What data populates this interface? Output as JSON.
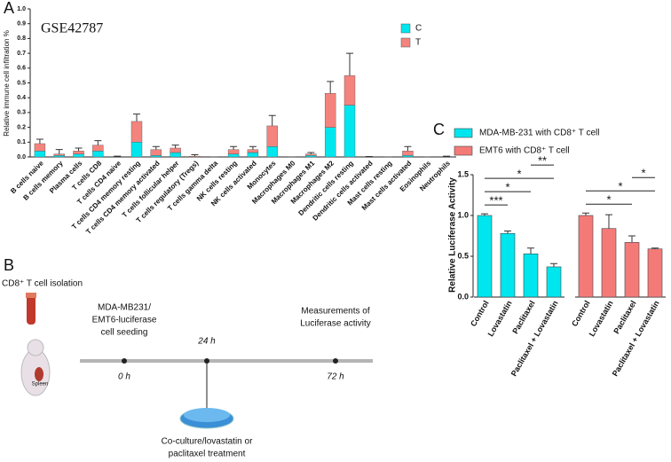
{
  "panel_labels": [
    "A",
    "B",
    "C"
  ],
  "chart_data": [
    {
      "type": "stacked_bar",
      "title": "GSE42787",
      "y_label": "Relative immune cell infiltration %",
      "categories": [
        "B cells naive",
        "B cells memory",
        "Plasma cells",
        "T cells CD8",
        "T cells CD4 naive",
        "T cells CD4 memory resting",
        "T cells CD4 memory activated",
        "T cells follicular helper",
        "T cells regulatory (Tregs)",
        "T cells gamma delta",
        "NK cells resting",
        "NK cells activated",
        "Monocytes",
        "Macrophages M0",
        "Macrophages M1",
        "Macrophages M2",
        "Dendritic cells resting",
        "Dendritic cells activated",
        "Mast cells resting",
        "Mast cells activated",
        "Eosinophils",
        "Neutrophils"
      ],
      "series": [
        {
          "name": "C",
          "color": "#00e6ee",
          "values": [
            0.04,
            0.01,
            0.02,
            0.04,
            0,
            0.1,
            0.01,
            0.03,
            0,
            0,
            0.02,
            0.03,
            0.07,
            0,
            0.01,
            0.2,
            0.35,
            0,
            0,
            0.01,
            0,
            0
          ]
        },
        {
          "name": "T",
          "color": "#f4837d",
          "values": [
            0.05,
            0.01,
            0.02,
            0.04,
            0,
            0.14,
            0.04,
            0.03,
            0.005,
            0,
            0.03,
            0.02,
            0.14,
            0,
            0.01,
            0.23,
            0.2,
            0,
            0,
            0.03,
            0,
            0
          ],
          "errors": [
            0.03,
            0.03,
            0.02,
            0.03,
            0.005,
            0.05,
            0.02,
            0.02,
            0.01,
            0,
            0.02,
            0.02,
            0.07,
            0,
            0.01,
            0.08,
            0.15,
            0.003,
            0,
            0.03,
            0,
            0.005
          ]
        }
      ],
      "ylim": [
        0,
        1.0
      ],
      "yticks": [
        {
          "value": 0,
          "label": "0.0"
        },
        0.1,
        0.2,
        0.3,
        0.4,
        0.5,
        0.6,
        0.7,
        0.8,
        0.9,
        {
          "value": 1.0,
          "label": "1.0"
        }
      ],
      "legend": "top-right"
    },
    {
      "type": "grouped_bar",
      "y_label": "Relative Luciferase Activity",
      "categories": [
        "Control",
        "Lovastatin",
        "Paclitaxel",
        "Paclitaxel + Lovastatin"
      ],
      "series": [
        {
          "name": "MDA-MB-231 with CD8⁺ T cell",
          "color": "#00e6ee",
          "values": [
            1.0,
            0.78,
            0.53,
            0.37
          ],
          "errors": [
            0.02,
            0.03,
            0.07,
            0.04
          ]
        },
        {
          "name": "EMT6 with CD8⁺ T cell",
          "color": "#f47a78",
          "values": [
            1.0,
            0.84,
            0.67,
            0.59
          ],
          "errors": [
            0.03,
            0.17,
            0.08,
            0.01
          ]
        }
      ],
      "ylim": [
        0,
        1.5
      ],
      "yticks": [
        {
          "value": 0,
          "label": "0.0"
        },
        0.5,
        {
          "value": 1.0,
          "label": "1.0"
        },
        1.5
      ],
      "annotations": [
        {
          "series": 0,
          "from": 0,
          "to": 1,
          "label": "***"
        },
        {
          "series": 0,
          "from": 0,
          "to": 2,
          "label": "*"
        },
        {
          "series": 0,
          "from": 0,
          "to": 3,
          "label": "*"
        },
        {
          "series": 0,
          "from": 2,
          "to": 3,
          "label": "**"
        },
        {
          "series": 1,
          "from": 0,
          "to": 2,
          "label": "*"
        },
        {
          "series": 1,
          "from": 0,
          "to": 3,
          "label": "*"
        },
        {
          "series": 1,
          "from": 2,
          "to": 3,
          "label": "*"
        }
      ],
      "legend": "top"
    }
  ],
  "timeline": {
    "title": "CD8⁺ T cell isolation",
    "organ": "Spleen",
    "steps": [
      {
        "time": "0 h",
        "text": [
          "MDA-MB231/",
          "EMT6-luciferase",
          "cell seeding"
        ]
      },
      {
        "time": "24 h",
        "text": [
          "Co-culture/lovastatin or",
          "paclitaxel treatment"
        ]
      },
      {
        "time": "72 h",
        "text": [
          "Measurements of",
          "Luciferase activity"
        ]
      }
    ]
  }
}
